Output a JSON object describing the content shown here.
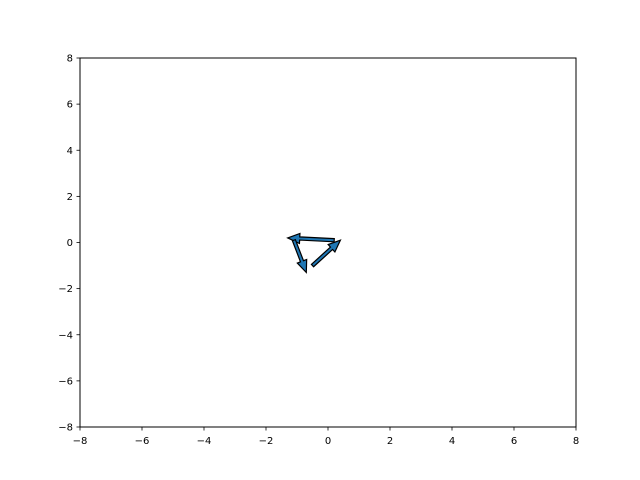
{
  "chart_data": {
    "type": "quiver",
    "title": "",
    "xlabel": "",
    "ylabel": "",
    "xlim": [
      -8,
      8
    ],
    "ylim": [
      -8,
      8
    ],
    "grid": false,
    "x_ticks": [
      -8,
      -6,
      -4,
      -2,
      0,
      2,
      4,
      6,
      8
    ],
    "y_ticks": [
      -8,
      -6,
      -4,
      -2,
      0,
      2,
      4,
      6,
      8
    ],
    "x_tick_labels": [
      "−8",
      "−6",
      "−4",
      "−2",
      "0",
      "2",
      "4",
      "6",
      "8"
    ],
    "y_tick_labels": [
      "−8",
      "−6",
      "−4",
      "−2",
      "0",
      "2",
      "4",
      "6",
      "8"
    ],
    "arrows": [
      {
        "x0": -0.5,
        "y0": -1.0,
        "x1": 0.4,
        "y1": 0.1
      },
      {
        "x0": 0.2,
        "y0": 0.1,
        "x1": -1.3,
        "y1": 0.2
      },
      {
        "x0": -1.1,
        "y0": 0.1,
        "x1": -0.7,
        "y1": -1.3
      }
    ],
    "colors": {
      "arrow_fill": "#1f77b4",
      "arrow_edge": "#000000",
      "axes": "#000000",
      "background": "#ffffff"
    }
  }
}
